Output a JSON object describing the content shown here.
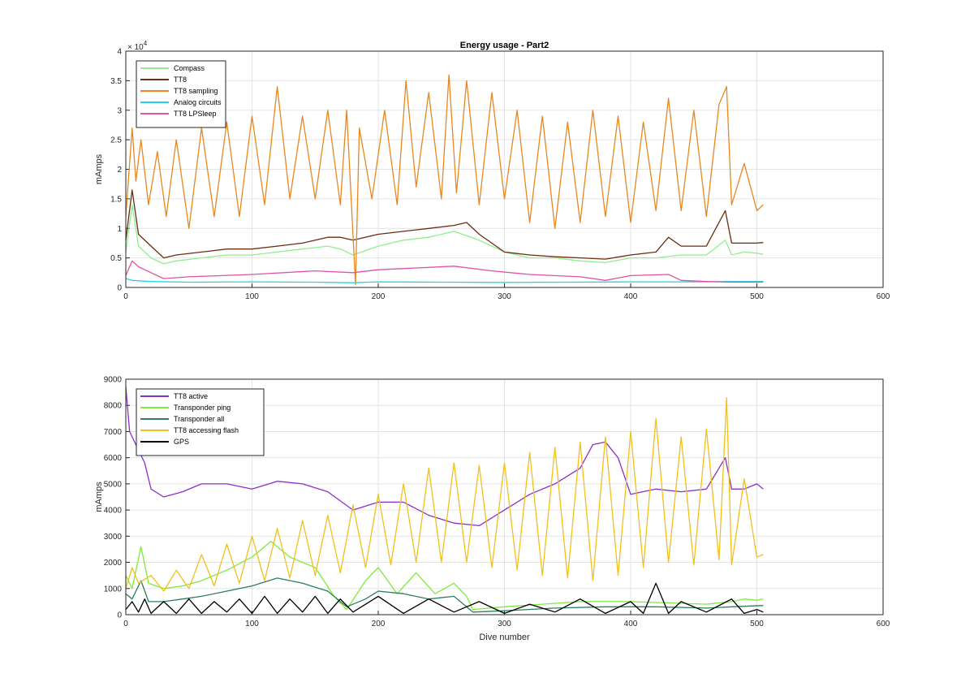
{
  "chart_data": [
    {
      "type": "line",
      "title": "Energy usage - Part2",
      "xlabel": "",
      "ylabel": "mAmps",
      "xlim": [
        0,
        600
      ],
      "ylim": [
        0,
        40000
      ],
      "xticks": [
        "0",
        "100",
        "200",
        "300",
        "400",
        "500",
        "600"
      ],
      "yticks": [
        "0",
        "0.5",
        "1",
        "1.5",
        "2",
        "2.5",
        "3",
        "3.5",
        "4"
      ],
      "y_exponent": "× 10",
      "y_exponent_power": "4",
      "grid": true,
      "legend_position": "top-left",
      "series": [
        {
          "name": "Compass",
          "color": "#90ee90",
          "x": [
            0,
            5,
            10,
            20,
            30,
            40,
            60,
            80,
            100,
            120,
            140,
            160,
            170,
            180,
            200,
            220,
            240,
            260,
            280,
            300,
            320,
            340,
            360,
            380,
            400,
            420,
            440,
            460,
            475,
            480,
            490,
            500,
            505
          ],
          "y": [
            6000,
            14000,
            7000,
            5000,
            4000,
            4500,
            5000,
            5500,
            5500,
            6000,
            6500,
            7000,
            6500,
            5500,
            7000,
            8000,
            8500,
            9500,
            8000,
            6000,
            5000,
            5000,
            4500,
            4200,
            5000,
            5000,
            5500,
            5500,
            8000,
            5500,
            6000,
            5800,
            5600
          ]
        },
        {
          "name": "TT8",
          "color": "#6b2d0e",
          "x": [
            0,
            5,
            10,
            20,
            30,
            40,
            60,
            80,
            100,
            120,
            140,
            160,
            170,
            180,
            200,
            220,
            240,
            260,
            270,
            280,
            300,
            320,
            340,
            360,
            380,
            400,
            420,
            430,
            440,
            460,
            475,
            480,
            490,
            500,
            505
          ],
          "y": [
            8000,
            16500,
            9000,
            7000,
            5000,
            5500,
            6000,
            6500,
            6500,
            7000,
            7500,
            8500,
            8500,
            8000,
            9000,
            9500,
            10000,
            10500,
            11000,
            9000,
            6000,
            5500,
            5200,
            5000,
            4800,
            5500,
            6000,
            8500,
            7000,
            7000,
            13000,
            7500,
            7500,
            7500,
            7600
          ]
        },
        {
          "name": "TT8 sampling",
          "color": "#e8871e",
          "x": [
            0,
            5,
            8,
            12,
            18,
            25,
            32,
            40,
            50,
            60,
            70,
            80,
            90,
            100,
            110,
            120,
            130,
            140,
            150,
            160,
            170,
            175,
            182,
            185,
            195,
            205,
            215,
            222,
            230,
            240,
            250,
            256,
            262,
            270,
            280,
            290,
            300,
            310,
            320,
            330,
            340,
            350,
            360,
            370,
            380,
            390,
            400,
            410,
            420,
            430,
            440,
            450,
            460,
            470,
            476,
            480,
            490,
            500,
            505
          ],
          "y": [
            12000,
            27000,
            18000,
            25000,
            14000,
            23000,
            12000,
            25000,
            10000,
            27000,
            12000,
            28000,
            12000,
            29000,
            14000,
            34000,
            15000,
            29000,
            15000,
            30000,
            14000,
            30000,
            500,
            27000,
            15000,
            30000,
            14000,
            35000,
            17000,
            33000,
            15000,
            36000,
            16000,
            35000,
            14000,
            33000,
            15000,
            30000,
            11000,
            29000,
            10000,
            28000,
            11000,
            30000,
            12000,
            29000,
            11000,
            28000,
            13000,
            32000,
            13000,
            30000,
            12000,
            31000,
            34000,
            14000,
            21000,
            13000,
            14000
          ]
        },
        {
          "name": "Analog circuits",
          "color": "#22d3e6",
          "x": [
            0,
            5,
            20,
            50,
            100,
            150,
            180,
            200,
            250,
            300,
            350,
            400,
            450,
            480,
            505
          ],
          "y": [
            1500,
            1200,
            1000,
            900,
            950,
            900,
            800,
            950,
            900,
            850,
            900,
            950,
            950,
            1000,
            1000
          ]
        },
        {
          "name": "TT8 LPSleep",
          "color": "#e052a6",
          "x": [
            0,
            5,
            10,
            20,
            30,
            50,
            100,
            150,
            180,
            200,
            240,
            260,
            290,
            320,
            360,
            380,
            400,
            430,
            440,
            460,
            480,
            505
          ],
          "y": [
            2000,
            4500,
            3500,
            2500,
            1500,
            1800,
            2200,
            2800,
            2500,
            3000,
            3400,
            3600,
            2800,
            2200,
            1800,
            1200,
            2000,
            2200,
            1200,
            1000,
            900,
            900
          ]
        }
      ]
    },
    {
      "type": "line",
      "title": "",
      "xlabel": "Dive number",
      "ylabel": "mAmps",
      "xlim": [
        0,
        600
      ],
      "ylim": [
        0,
        9000
      ],
      "xticks": [
        "0",
        "100",
        "200",
        "300",
        "400",
        "500",
        "600"
      ],
      "yticks": [
        "0",
        "1000",
        "2000",
        "3000",
        "4000",
        "5000",
        "6000",
        "7000",
        "8000",
        "9000"
      ],
      "grid": true,
      "legend_position": "top-left",
      "series": [
        {
          "name": "TT8 active",
          "color": "#8b2fc9",
          "x": [
            0,
            3,
            8,
            15,
            20,
            30,
            45,
            60,
            80,
            100,
            120,
            140,
            160,
            180,
            200,
            220,
            240,
            260,
            280,
            300,
            320,
            340,
            360,
            370,
            380,
            390,
            400,
            420,
            440,
            460,
            475,
            480,
            490,
            500,
            505
          ],
          "y": [
            8700,
            7000,
            6500,
            5800,
            4800,
            4500,
            4700,
            5000,
            5000,
            4800,
            5100,
            5000,
            4700,
            4000,
            4300,
            4300,
            3800,
            3500,
            3400,
            4000,
            4600,
            5000,
            5600,
            6500,
            6600,
            6000,
            4600,
            4800,
            4700,
            4800,
            6000,
            4800,
            4800,
            5000,
            4800
          ]
        },
        {
          "name": "Transponder ping",
          "color": "#7fea3a",
          "x": [
            0,
            5,
            12,
            18,
            30,
            45,
            60,
            80,
            100,
            115,
            130,
            150,
            165,
            175,
            190,
            200,
            215,
            230,
            245,
            260,
            270,
            275,
            300,
            330,
            360,
            380,
            400,
            430,
            460,
            480,
            490,
            500,
            505
          ],
          "y": [
            1500,
            1000,
            2600,
            1200,
            1000,
            1100,
            1300,
            1700,
            2200,
            2800,
            2200,
            1800,
            700,
            200,
            1300,
            1800,
            800,
            1600,
            800,
            1200,
            700,
            200,
            300,
            400,
            500,
            500,
            500,
            450,
            400,
            500,
            600,
            550,
            600
          ]
        },
        {
          "name": "Transponder all",
          "color": "#2e7d5b",
          "x": [
            0,
            5,
            12,
            18,
            30,
            45,
            60,
            80,
            100,
            120,
            140,
            160,
            175,
            190,
            200,
            220,
            240,
            260,
            275,
            300,
            340,
            380,
            420,
            460,
            480,
            505
          ],
          "y": [
            800,
            600,
            1300,
            500,
            500,
            600,
            700,
            900,
            1100,
            1400,
            1200,
            900,
            300,
            600,
            900,
            800,
            600,
            700,
            100,
            150,
            250,
            300,
            300,
            250,
            300,
            350
          ]
        },
        {
          "name": "TT8 accessing flash",
          "color": "#f2c01d",
          "x": [
            0,
            5,
            10,
            20,
            30,
            40,
            50,
            60,
            70,
            80,
            90,
            100,
            110,
            120,
            130,
            140,
            150,
            160,
            170,
            180,
            190,
            200,
            210,
            220,
            230,
            240,
            250,
            260,
            270,
            280,
            290,
            300,
            310,
            320,
            330,
            340,
            350,
            360,
            370,
            380,
            390,
            400,
            410,
            420,
            430,
            440,
            450,
            460,
            470,
            476,
            480,
            490,
            500,
            505
          ],
          "y": [
            1000,
            1800,
            1200,
            1500,
            900,
            1700,
            1000,
            2300,
            1100,
            2700,
            1200,
            3000,
            1300,
            3300,
            1400,
            3600,
            1500,
            3800,
            1600,
            4200,
            1800,
            4600,
            1900,
            5000,
            2000,
            5600,
            2000,
            5800,
            2000,
            5700,
            1800,
            5800,
            1700,
            6200,
            1500,
            6400,
            1400,
            6600,
            1300,
            6800,
            1500,
            7000,
            1800,
            7500,
            2000,
            6800,
            1900,
            7100,
            2100,
            8300,
            1900,
            5200,
            2200,
            2300
          ]
        },
        {
          "name": "GPS",
          "color": "#000000",
          "x": [
            0,
            5,
            10,
            15,
            20,
            30,
            40,
            50,
            60,
            70,
            80,
            90,
            100,
            110,
            120,
            130,
            140,
            150,
            160,
            170,
            180,
            200,
            220,
            240,
            260,
            280,
            300,
            320,
            340,
            360,
            380,
            400,
            410,
            420,
            430,
            440,
            460,
            480,
            490,
            500,
            505
          ],
          "y": [
            200,
            500,
            100,
            600,
            50,
            500,
            50,
            600,
            50,
            500,
            100,
            600,
            50,
            700,
            50,
            600,
            100,
            700,
            50,
            600,
            100,
            700,
            50,
            600,
            100,
            500,
            50,
            400,
            100,
            600,
            50,
            500,
            50,
            1200,
            50,
            500,
            100,
            600,
            50,
            200,
            100
          ]
        }
      ]
    }
  ]
}
